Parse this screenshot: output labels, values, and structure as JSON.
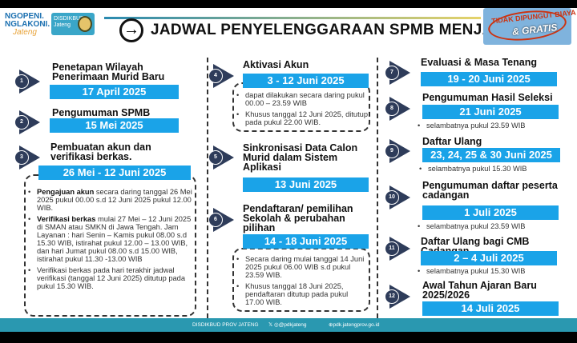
{
  "header": {
    "logo_line1": "NGOPENI.",
    "logo_line2": "NGLAKONI.",
    "logo_line3": "Jateng",
    "agency_logo": "DISDIKBUD Jateng",
    "arrow_icon": "arrow-right-circle",
    "title": "JADWAL PENYELENGGARAAN SPMB MENJADI:",
    "stamp_line1": "TIDAK DIPUNGUT BIAYA",
    "stamp_line2": "& GRATIS"
  },
  "colors": {
    "date_bar": "#1aa3e8",
    "marker": "#2e3c5a",
    "footer": "#2a98b0"
  },
  "items": [
    {
      "num": "1",
      "title": "Penetapan Wilayah Penerimaan Murid Baru",
      "date": "17 April 2025",
      "bullets": []
    },
    {
      "num": "2",
      "title": "Pengumuman SPMB",
      "date": "15 Mei 2025",
      "bullets": []
    },
    {
      "num": "3",
      "title": "Pembuatan akun dan verifikasi berkas.",
      "date": "26 Mei - 12 Juni 2025",
      "bullets": [
        {
          "bold": "Pengajuan akun",
          "text": " secara daring tanggal 26 Mei 2025 pukul 00.00 s.d 12 Juni 2025 pukul 12.00 WIB."
        },
        {
          "bold": "Verifikasi berkas",
          "text": " mulai 27 Mei – 12 Juni 2025 di SMAN atau SMKN di Jawa Tengah. Jam Layanan : hari Senin – Kamis pukul 08.00 s.d 15.30 WIB, istirahat pukul 12.00 – 13.00 WIB, dan hari Jumat pukul 08.00 s.d 15.00 WIB, istirahat pukul 11.30 -13.00 WIB"
        },
        {
          "bold": "",
          "text": "Verifikasi berkas pada hari terakhir jadwal verifikasi (tanggal 12 Juni 2025) ditutup pada pukul 15.30 WIB."
        }
      ]
    },
    {
      "num": "4",
      "title": "Aktivasi Akun",
      "date": "3 - 12 Juni 2025",
      "bullets": [
        {
          "bold": "",
          "text": "dapat dilakukan secara daring pukul 00.00 – 23.59 WIB"
        },
        {
          "bold": "",
          "text": "Khusus tanggal 12 Juni 2025, ditutup pada pukul 22.00 WIB."
        }
      ]
    },
    {
      "num": "5",
      "title": "Sinkronisasi Data Calon Murid dalam Sistem Aplikasi",
      "date": "13 Juni 2025",
      "bullets": []
    },
    {
      "num": "6",
      "title": "Pendaftaran/ pemilihan Sekolah & perubahan pilihan",
      "date": "14 - 18 Juni 2025",
      "bullets": [
        {
          "bold": "",
          "text": "Secara daring mulai tanggal 14 Juni 2025 pukul 06.00 WIB s.d pukul 23.59 WIB."
        },
        {
          "bold": "",
          "text": "Khusus tanggal 18 Juni 2025, pendaftaran ditutup pada pukul 17.00 WIB."
        }
      ]
    },
    {
      "num": "7",
      "title": "Evaluasi & Masa Tenang",
      "date": "19 - 20 Juni 2025",
      "bullets": []
    },
    {
      "num": "8",
      "title": "Pengumuman Hasil Seleksi",
      "date": "21 Juni 2025",
      "bullets": [
        {
          "bold": "",
          "text": "selambatnya pukul 23.59 WIB"
        }
      ]
    },
    {
      "num": "9",
      "title": "Daftar Ulang",
      "date": "23, 24, 25 & 30 Juni 2025",
      "bullets": [
        {
          "bold": "",
          "text": "selambatnya pukul 15.30 WIB"
        }
      ]
    },
    {
      "num": "10",
      "title": "Pengumuman daftar peserta cadangan",
      "date": "1 Juli 2025",
      "bullets": [
        {
          "bold": "",
          "text": "selambatnya pukul 23.59 WIB"
        }
      ]
    },
    {
      "num": "11",
      "title": "Daftar Ulang bagi CMB Cadangan",
      "date": "2 – 4 Juli 2025",
      "bullets": [
        {
          "bold": "",
          "text": "selambatnya pukul 15.30 WIB"
        }
      ]
    },
    {
      "num": "12",
      "title": "Awal Tahun Ajaran Baru 2025/2026",
      "date": "14 Juli 2025",
      "bullets": []
    }
  ],
  "footer": {
    "account": "DISDIKBUD PROV JATENG",
    "social": "@pdkjateng",
    "website": "pdk.jatengprov.go.id"
  }
}
